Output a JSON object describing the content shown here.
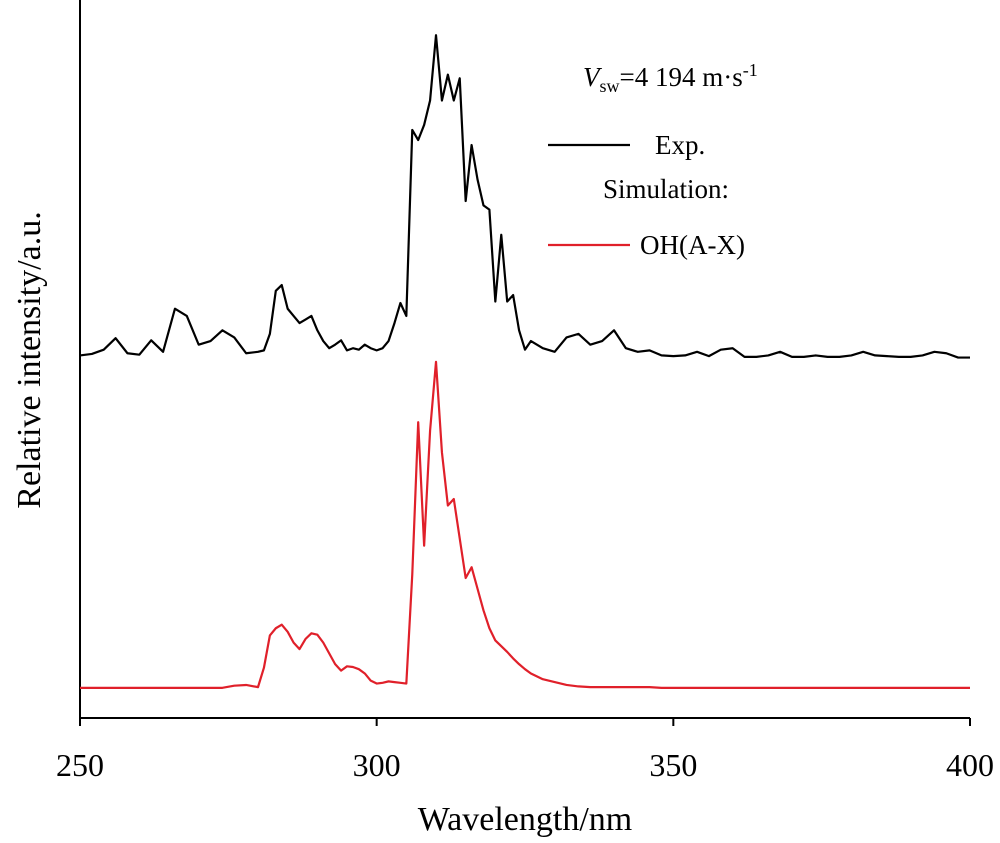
{
  "chart_data": {
    "type": "line",
    "xlabel": "Wavelength/nm",
    "ylabel": "Relative intensity/a.u.",
    "annotation": {
      "symbol": "V",
      "subscript": "sw",
      "text": "=4 194 m·s",
      "superscript": "-1"
    },
    "legend_heading": "Simulation:",
    "xlim": [
      250,
      400
    ],
    "xticks": [
      250,
      300,
      350,
      400
    ],
    "ylim": [
      0,
      100
    ],
    "x": [
      250,
      252,
      254,
      256,
      258,
      260,
      262,
      264,
      266,
      268,
      270,
      272,
      274,
      276,
      278,
      280,
      281,
      282,
      283,
      284,
      285,
      286,
      287,
      288,
      289,
      290,
      291,
      292,
      293,
      294,
      295,
      296,
      297,
      298,
      299,
      300,
      301,
      302,
      303,
      304,
      305,
      306,
      307,
      308,
      309,
      310,
      311,
      312,
      313,
      314,
      315,
      316,
      317,
      318,
      319,
      320,
      321,
      322,
      323,
      324,
      325,
      326,
      328,
      330,
      332,
      334,
      336,
      338,
      340,
      342,
      344,
      346,
      348,
      350,
      352,
      354,
      356,
      358,
      360,
      362,
      364,
      366,
      368,
      370,
      372,
      374,
      376,
      378,
      380,
      382,
      384,
      386,
      388,
      390,
      392,
      394,
      396,
      398,
      400
    ],
    "series": [
      {
        "name": "Exp.",
        "color": "#000000",
        "values": [
          50.5,
          50.7,
          51.3,
          52.9,
          50.8,
          50.6,
          52.6,
          51,
          57,
          56,
          52,
          52.5,
          54,
          53,
          50.8,
          51,
          51.2,
          53.5,
          59.5,
          60.3,
          57,
          56,
          55,
          55.5,
          56,
          54,
          52.5,
          51.5,
          52,
          52.6,
          51.2,
          51.5,
          51.3,
          52,
          51.5,
          51.2,
          51.5,
          52.5,
          55,
          57.8,
          56,
          81.9,
          80.5,
          82.6,
          86,
          95.1,
          86,
          89.6,
          86,
          89.1,
          72,
          79.8,
          75,
          71.4,
          70.8,
          58,
          67.3,
          58,
          58.9,
          54,
          51.3,
          52.5,
          51.5,
          51,
          53,
          53.5,
          52,
          52.5,
          54,
          51.5,
          51,
          51.2,
          50.5,
          50.4,
          50.5,
          51,
          50.4,
          51.3,
          51.5,
          50.3,
          50.3,
          50.5,
          51,
          50.3,
          50.3,
          50.5,
          50.3,
          50.3,
          50.5,
          51,
          50.5,
          50.4,
          50.3,
          50.3,
          50.5,
          51,
          50.8,
          50.2,
          50.2
        ]
      },
      {
        "name": "OH(A-X)",
        "color": "#e0202a",
        "values": [
          4.2,
          4.2,
          4.2,
          4.2,
          4.2,
          4.2,
          4.2,
          4.2,
          4.2,
          4.2,
          4.2,
          4.2,
          4.2,
          4.5,
          4.6,
          4.3,
          7,
          11.5,
          12.5,
          13,
          12,
          10.5,
          9.6,
          11,
          11.8,
          11.6,
          10.5,
          9,
          7.5,
          6.6,
          7.2,
          7.1,
          6.8,
          6.2,
          5.2,
          4.8,
          4.9,
          5.1,
          5,
          4.9,
          4.8,
          20,
          41.2,
          24,
          40,
          49.6,
          37,
          29.6,
          30.5,
          25,
          19.5,
          21,
          18,
          15,
          12.5,
          10.8,
          10,
          9.2,
          8.3,
          7.5,
          6.8,
          6.2,
          5.4,
          5,
          4.6,
          4.4,
          4.3,
          4.3,
          4.3,
          4.3,
          4.3,
          4.3,
          4.2,
          4.2,
          4.2,
          4.2,
          4.2,
          4.2,
          4.2,
          4.2,
          4.2,
          4.2,
          4.2,
          4.2,
          4.2,
          4.2,
          4.2,
          4.2,
          4.2,
          4.2,
          4.2,
          4.2,
          4.2,
          4.2,
          4.2,
          4.2,
          4.2,
          4.2,
          4.2
        ]
      }
    ]
  }
}
